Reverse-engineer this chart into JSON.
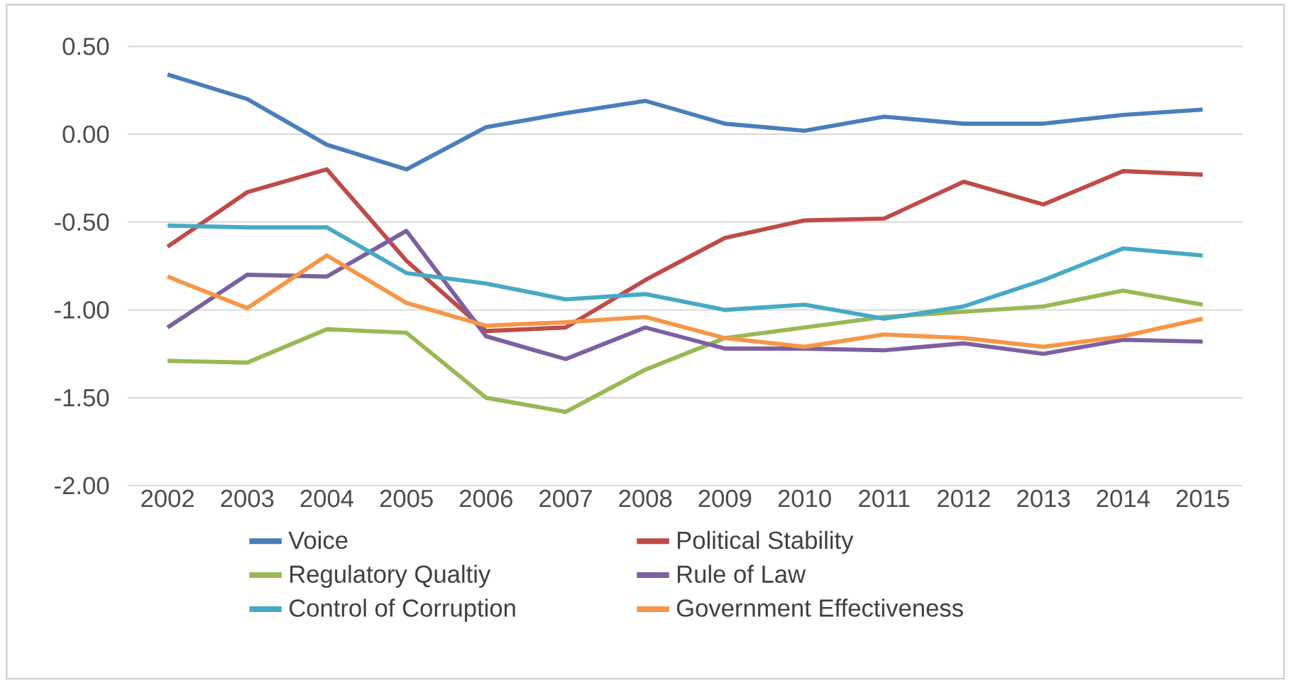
{
  "chart_data": {
    "type": "line",
    "categories": [
      "2002",
      "2003",
      "2004",
      "2005",
      "2006",
      "2007",
      "2008",
      "2009",
      "2010",
      "2011",
      "2012",
      "2013",
      "2014",
      "2015"
    ],
    "series": [
      {
        "name": "Voice",
        "color": "#4a7ebb",
        "values": [
          0.34,
          0.2,
          -0.06,
          -0.2,
          0.04,
          0.12,
          0.19,
          0.06,
          0.02,
          0.1,
          0.06,
          0.06,
          0.11,
          0.14
        ]
      },
      {
        "name": "Political Stability",
        "color": "#be4b48",
        "values": [
          -0.64,
          -0.33,
          -0.2,
          -0.72,
          -1.12,
          -1.1,
          -0.83,
          -0.59,
          -0.49,
          -0.48,
          -0.27,
          -0.4,
          -0.21,
          -0.23
        ]
      },
      {
        "name": "Regulatory Qualtiy",
        "color": "#98b954",
        "values": [
          -1.29,
          -1.3,
          -1.11,
          -1.13,
          -1.5,
          -1.58,
          -1.34,
          -1.16,
          -1.1,
          -1.04,
          -1.01,
          -0.98,
          -0.89,
          -0.97
        ]
      },
      {
        "name": "Rule of Law",
        "color": "#7d60a0",
        "values": [
          -1.1,
          -0.8,
          -0.81,
          -0.55,
          -1.15,
          -1.28,
          -1.1,
          -1.22,
          -1.22,
          -1.23,
          -1.19,
          -1.25,
          -1.17,
          -1.18
        ]
      },
      {
        "name": "Control of Corruption",
        "color": "#46aac5",
        "values": [
          -0.52,
          -0.53,
          -0.53,
          -0.79,
          -0.85,
          -0.94,
          -0.91,
          -1.0,
          -0.97,
          -1.05,
          -0.98,
          -0.83,
          -0.65,
          -0.69
        ]
      },
      {
        "name": "Government Effectiveness",
        "color": "#f79646",
        "values": [
          -0.81,
          -0.99,
          -0.69,
          -0.96,
          -1.09,
          -1.07,
          -1.04,
          -1.16,
          -1.21,
          -1.14,
          -1.16,
          -1.21,
          -1.15,
          -1.05
        ]
      }
    ],
    "ylim": [
      -2,
      0.5
    ],
    "yticks": [
      {
        "value": 0.5,
        "label": "0.50"
      },
      {
        "value": 0,
        "label": "0.00"
      },
      {
        "value": -0.5,
        "label": "-0.50"
      },
      {
        "value": -1,
        "label": "-1.00"
      },
      {
        "value": -1.5,
        "label": "-1.50"
      },
      {
        "value": -2,
        "label": "-2.00"
      }
    ],
    "grid": "y",
    "legend": "bottom",
    "marker": "none",
    "line_style": "solid"
  }
}
